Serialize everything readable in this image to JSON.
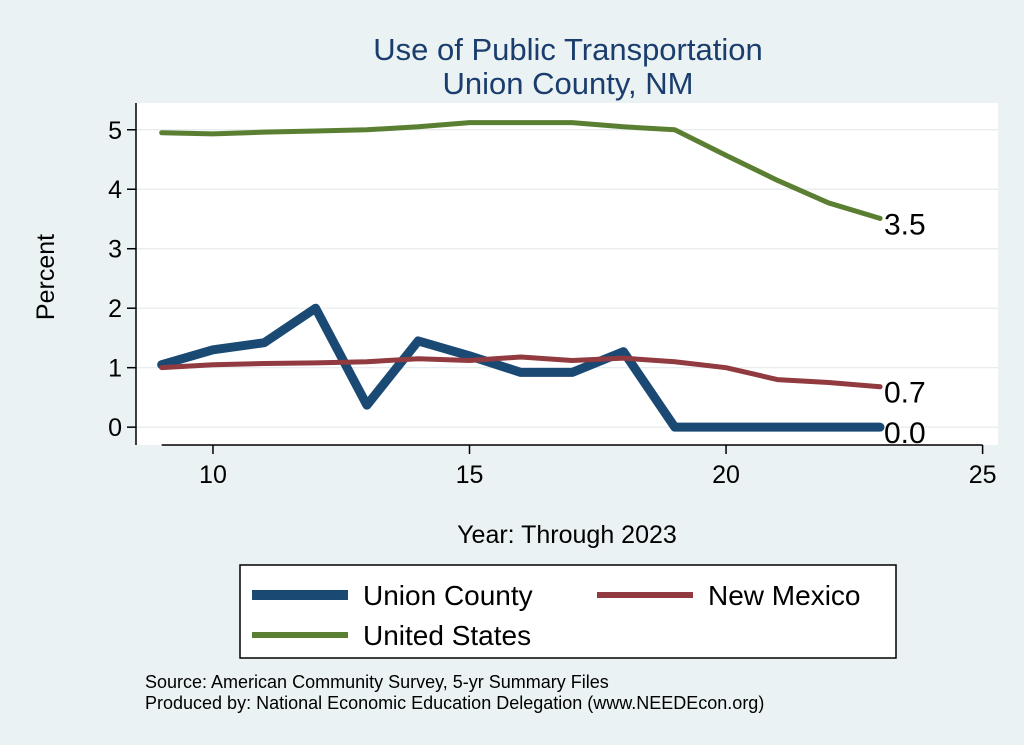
{
  "chart_data": {
    "type": "line",
    "title": [
      "Use of Public Transportation",
      "Union County, NM"
    ],
    "xlabel": "Year: Through 2023",
    "ylabel": "Percent",
    "xlim": [
      8.5,
      25.3
    ],
    "ylim": [
      -0.3,
      5.45
    ],
    "xticks": [
      10,
      15,
      20,
      25
    ],
    "yticks": [
      0,
      1,
      2,
      3,
      4,
      5
    ],
    "grid": true,
    "x": [
      9,
      10,
      11,
      12,
      13,
      14,
      15,
      16,
      17,
      18,
      19,
      20,
      21,
      22,
      23
    ],
    "series": [
      {
        "name": "Union County",
        "color": "#1a4a74",
        "width": 9,
        "end_label": "0.0",
        "values": [
          1.05,
          1.3,
          1.42,
          2.0,
          0.37,
          1.45,
          1.2,
          0.92,
          0.92,
          1.27,
          0.0,
          0.0,
          0.0,
          0.0,
          0.0
        ]
      },
      {
        "name": "New Mexico",
        "color": "#913a3f",
        "width": 5,
        "end_label": "0.7",
        "values": [
          1.0,
          1.05,
          1.07,
          1.08,
          1.1,
          1.15,
          1.12,
          1.18,
          1.12,
          1.16,
          1.1,
          1.0,
          0.8,
          0.75,
          0.68
        ]
      },
      {
        "name": "United States",
        "color": "#5b7f32",
        "width": 5,
        "end_label": "3.5",
        "values": [
          4.95,
          4.93,
          4.96,
          4.98,
          5.0,
          5.05,
          5.12,
          5.12,
          5.12,
          5.05,
          5.0,
          4.57,
          4.15,
          3.77,
          3.51
        ]
      }
    ],
    "legend": {
      "position": "bottom",
      "columns": 2
    },
    "notes": [
      "Source: American Community Survey, 5-yr Summary Files",
      "Produced by: National Economic Education Delegation (www.NEEDEcon.org)"
    ]
  }
}
